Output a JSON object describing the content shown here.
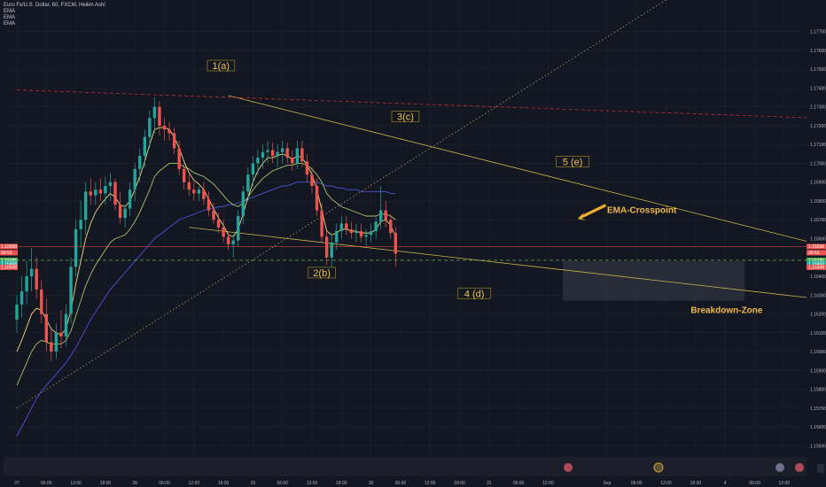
{
  "header": {
    "title": "Euro Fx/U.S. Dollar, 60, FXCM, Heikin Ashi",
    "indicators": [
      "EMA",
      "EMA",
      "EMA"
    ]
  },
  "colors": {
    "background": "#131722",
    "grid": "#1e222d",
    "bull": "#26a69a",
    "bear": "#ef5350",
    "ema_fast": "#f0d67a",
    "ema_mid": "#a5c46a",
    "ema_slow": "#4c54d8",
    "trendline": "#c9b44a",
    "dotted_trend": "#b0a060",
    "resistance": "#c0302f",
    "annotation": "#f0c34a",
    "current_price_line": "#ef5350",
    "support_dash": "#7ec85a"
  },
  "chart_data": {
    "type": "candlestick",
    "symbol": "Euro Fx/U.S. Dollar",
    "timeframe": "60",
    "y_axis": {
      "range": [
        1.1545,
        1.1783
      ],
      "ticks": [
        "1.17700",
        "1.17600",
        "1.17500",
        "1.17400",
        "1.17300",
        "1.17200",
        "1.17100",
        "1.17000",
        "1.16900",
        "1.16800",
        "1.16700",
        "1.16600",
        "1.16400",
        "1.16300",
        "1.16200",
        "1.16100",
        "1.16000",
        "1.15900",
        "1.15800",
        "1.15700",
        "1.15600",
        "1.15500"
      ],
      "tick_values": [
        1.177,
        1.176,
        1.175,
        1.174,
        1.173,
        1.172,
        1.171,
        1.17,
        1.169,
        1.168,
        1.167,
        1.166,
        1.164,
        1.163,
        1.162,
        1.161,
        1.16,
        1.159,
        1.158,
        1.157,
        1.156,
        1.155
      ],
      "price_tags": [
        {
          "label": "1.16558",
          "value": 1.16558,
          "color": "#ef5350"
        },
        {
          "label": "30:53",
          "value": 1.16525,
          "color": "#ef5350"
        },
        {
          "label": "1.16485",
          "value": 1.16485,
          "color": "#4caf50"
        },
        {
          "label": "1.16468",
          "value": 1.16468,
          "color": "#26a69a"
        },
        {
          "label": "1.16448",
          "value": 1.16448,
          "color": "#ef5350"
        }
      ]
    },
    "x_axis": {
      "tick_labels": [
        "27",
        "06:00",
        "12:00",
        "18:00",
        "28",
        "06:00",
        "12:00",
        "18:00",
        "29",
        "06:00",
        "12:00",
        "18:00",
        "30",
        "06:00",
        "12:00",
        "18:00",
        "31",
        "06:00",
        "12:00",
        "Sep",
        "06:00",
        "12:00",
        "18:00",
        "4",
        "06:00",
        "12:00"
      ],
      "tick_bars": [
        0,
        6,
        12,
        18,
        24,
        30,
        36,
        42,
        48,
        54,
        60,
        66,
        72,
        78,
        84,
        90,
        96,
        102,
        108,
        120,
        126,
        132,
        138,
        144,
        150,
        156
      ]
    },
    "candles_ohlc": [
      [
        1.1617,
        1.163,
        1.161,
        1.1625
      ],
      [
        1.1625,
        1.164,
        1.1618,
        1.1632
      ],
      [
        1.1632,
        1.1648,
        1.1625,
        1.164
      ],
      [
        1.164,
        1.1655,
        1.1632,
        1.1644
      ],
      [
        1.1644,
        1.165,
        1.1628,
        1.1633
      ],
      [
        1.1633,
        1.1638,
        1.1615,
        1.162
      ],
      [
        1.162,
        1.1628,
        1.16,
        1.1605
      ],
      [
        1.1605,
        1.1612,
        1.1595,
        1.16
      ],
      [
        1.16,
        1.1615,
        1.1596,
        1.161
      ],
      [
        1.161,
        1.1622,
        1.1602,
        1.1608
      ],
      [
        1.1608,
        1.1625,
        1.1603,
        1.162
      ],
      [
        1.162,
        1.165,
        1.1615,
        1.1645
      ],
      [
        1.1645,
        1.167,
        1.164,
        1.1665
      ],
      [
        1.1665,
        1.168,
        1.1655,
        1.167
      ],
      [
        1.167,
        1.169,
        1.1662,
        1.1685
      ],
      [
        1.1685,
        1.1692,
        1.1678,
        1.1683
      ],
      [
        1.1683,
        1.169,
        1.1678,
        1.1686
      ],
      [
        1.1686,
        1.1692,
        1.168,
        1.1684
      ],
      [
        1.1684,
        1.1693,
        1.1678,
        1.1688
      ],
      [
        1.1688,
        1.1695,
        1.168,
        1.169
      ],
      [
        1.169,
        1.1692,
        1.1675,
        1.1678
      ],
      [
        1.1678,
        1.1685,
        1.1668,
        1.1671
      ],
      [
        1.1671,
        1.1678,
        1.1666,
        1.1676
      ],
      [
        1.1676,
        1.169,
        1.1672,
        1.1686
      ],
      [
        1.1686,
        1.17,
        1.168,
        1.1697
      ],
      [
        1.1697,
        1.1708,
        1.169,
        1.1704
      ],
      [
        1.1704,
        1.1718,
        1.1698,
        1.1714
      ],
      [
        1.1714,
        1.1728,
        1.1708,
        1.1724
      ],
      [
        1.1724,
        1.1735,
        1.1716,
        1.173
      ],
      [
        1.173,
        1.1733,
        1.1715,
        1.172
      ],
      [
        1.172,
        1.1724,
        1.1712,
        1.1718
      ],
      [
        1.1718,
        1.1722,
        1.1712,
        1.1716
      ],
      [
        1.1716,
        1.1719,
        1.1705,
        1.1708
      ],
      [
        1.1708,
        1.1712,
        1.1694,
        1.1697
      ],
      [
        1.1697,
        1.17,
        1.1686,
        1.169
      ],
      [
        1.169,
        1.1694,
        1.1683,
        1.1686
      ],
      [
        1.1686,
        1.169,
        1.168,
        1.1684
      ],
      [
        1.1684,
        1.1688,
        1.168,
        1.1686
      ],
      [
        1.1686,
        1.169,
        1.1678,
        1.1681
      ],
      [
        1.1681,
        1.1685,
        1.1672,
        1.1675
      ],
      [
        1.1675,
        1.1679,
        1.1668,
        1.167
      ],
      [
        1.167,
        1.1674,
        1.1663,
        1.1666
      ],
      [
        1.1666,
        1.167,
        1.1658,
        1.1661
      ],
      [
        1.1661,
        1.1664,
        1.1654,
        1.1657
      ],
      [
        1.1657,
        1.1662,
        1.165,
        1.1659
      ],
      [
        1.1659,
        1.1675,
        1.1656,
        1.1672
      ],
      [
        1.1672,
        1.1688,
        1.1668,
        1.1685
      ],
      [
        1.1685,
        1.1698,
        1.168,
        1.1694
      ],
      [
        1.1694,
        1.1704,
        1.1688,
        1.17
      ],
      [
        1.17,
        1.1707,
        1.1694,
        1.1703
      ],
      [
        1.1703,
        1.171,
        1.1697,
        1.1706
      ],
      [
        1.1706,
        1.1712,
        1.17,
        1.1707
      ],
      [
        1.1707,
        1.1711,
        1.17,
        1.1704
      ],
      [
        1.1704,
        1.171,
        1.1698,
        1.1706
      ],
      [
        1.1706,
        1.1712,
        1.17,
        1.1708
      ],
      [
        1.1708,
        1.1711,
        1.17,
        1.1703
      ],
      [
        1.1703,
        1.1707,
        1.1696,
        1.17
      ],
      [
        1.17,
        1.1712,
        1.1697,
        1.1708
      ],
      [
        1.1708,
        1.1712,
        1.1698,
        1.1701
      ],
      [
        1.1701,
        1.1705,
        1.169,
        1.1694
      ],
      [
        1.1694,
        1.1698,
        1.1684,
        1.1688
      ],
      [
        1.1688,
        1.1692,
        1.1672,
        1.1675
      ],
      [
        1.1675,
        1.1679,
        1.1658,
        1.1661
      ],
      [
        1.1661,
        1.1664,
        1.1646,
        1.165
      ],
      [
        1.165,
        1.1662,
        1.1645,
        1.1658
      ],
      [
        1.1658,
        1.1668,
        1.1654,
        1.1664
      ],
      [
        1.1664,
        1.1672,
        1.166,
        1.1668
      ],
      [
        1.1668,
        1.1672,
        1.1662,
        1.1665
      ],
      [
        1.1665,
        1.1669,
        1.166,
        1.1663
      ],
      [
        1.1663,
        1.1668,
        1.1658,
        1.1664
      ],
      [
        1.1664,
        1.1668,
        1.1658,
        1.1661
      ],
      [
        1.1661,
        1.1665,
        1.1656,
        1.1662
      ],
      [
        1.1662,
        1.1668,
        1.1658,
        1.1664
      ],
      [
        1.1664,
        1.1672,
        1.166,
        1.1669
      ],
      [
        1.1669,
        1.1688,
        1.1665,
        1.1675
      ],
      [
        1.1675,
        1.168,
        1.1666,
        1.167
      ],
      [
        1.167,
        1.1673,
        1.166,
        1.1663
      ],
      [
        1.1663,
        1.1666,
        1.1645,
        1.1652
      ]
    ],
    "bar_spacing": 5.55,
    "ema_fast_values": [
      1.16,
      1.1606,
      1.1613,
      1.162,
      1.1623,
      1.1622,
      1.1617,
      1.1612,
      1.161,
      1.1609,
      1.1612,
      1.1622,
      1.1636,
      1.1648,
      1.166,
      1.1668,
      1.1674,
      1.1678,
      1.1681,
      1.1684,
      1.1682,
      1.1678,
      1.1677,
      1.168,
      1.1686,
      1.1693,
      1.1701,
      1.171,
      1.1718,
      1.1719,
      1.1719,
      1.1718,
      1.1714,
      1.1708,
      1.1701,
      1.1695,
      1.1691,
      1.1689,
      1.1686,
      1.1681,
      1.1676,
      1.1671,
      1.1667,
      1.1662,
      1.1661,
      1.1665,
      1.1673,
      1.1682,
      1.169,
      1.1696,
      1.17,
      1.1703,
      1.1703,
      1.1704,
      1.1705,
      1.1704,
      1.1702,
      1.1704,
      1.1703,
      1.1699,
      1.1694,
      1.1686,
      1.1675,
      1.1664,
      1.1662,
      1.1663,
      1.1665,
      1.1665,
      1.1664,
      1.1664,
      1.1663,
      1.1663,
      1.1663,
      1.1665,
      1.1669,
      1.167,
      1.1667,
      1.1661
    ],
    "ema_mid_values": [
      1.1582,
      1.1588,
      1.1594,
      1.16,
      1.1604,
      1.1606,
      1.1605,
      1.1604,
      1.1604,
      1.1604,
      1.1606,
      1.1611,
      1.1619,
      1.1627,
      1.1635,
      1.1641,
      1.1646,
      1.165,
      1.1654,
      1.1658,
      1.166,
      1.1661,
      1.1662,
      1.1665,
      1.1669,
      1.1674,
      1.168,
      1.1686,
      1.1693,
      1.1696,
      1.1698,
      1.17,
      1.17,
      1.17,
      1.1698,
      1.1697,
      1.1695,
      1.1694,
      1.1693,
      1.1691,
      1.1689,
      1.1686,
      1.1683,
      1.168,
      1.1678,
      1.1677,
      1.1679,
      1.1682,
      1.1686,
      1.1689,
      1.1692,
      1.1694,
      1.1696,
      1.1697,
      1.1698,
      1.1699,
      1.1699,
      1.17,
      1.17,
      1.1699,
      1.1697,
      1.1694,
      1.169,
      1.1684,
      1.1681,
      1.1679,
      1.1677,
      1.1676,
      1.1675,
      1.1674,
      1.1673,
      1.1672,
      1.1672,
      1.1672,
      1.1673,
      1.1673,
      1.1672,
      1.167
    ],
    "ema_slow_values": [
      1.1555,
      1.156,
      1.1565,
      1.157,
      1.1575,
      1.1579,
      1.1582,
      1.1585,
      1.1588,
      1.1591,
      1.1594,
      1.1598,
      1.1602,
      1.1607,
      1.1612,
      1.1617,
      1.1621,
      1.1625,
      1.1629,
      1.1633,
      1.1636,
      1.1639,
      1.1642,
      1.1645,
      1.1648,
      1.1651,
      1.1654,
      1.1657,
      1.166,
      1.1662,
      1.1664,
      1.1666,
      1.1668,
      1.167,
      1.1671,
      1.1672,
      1.1673,
      1.1674,
      1.1675,
      1.1676,
      1.1676,
      1.1677,
      1.1677,
      1.1678,
      1.1678,
      1.1679,
      1.168,
      1.1681,
      1.1682,
      1.1683,
      1.1684,
      1.1685,
      1.1686,
      1.1687,
      1.1688,
      1.1688,
      1.1689,
      1.169,
      1.169,
      1.169,
      1.169,
      1.169,
      1.1689,
      1.1688,
      1.1688,
      1.1687,
      1.1687,
      1.1686,
      1.1686,
      1.1686,
      1.1685,
      1.1685,
      1.1685,
      1.1685,
      1.1685,
      1.1685,
      1.1684,
      1.1684
    ],
    "annotations": [
      {
        "label": "1(a)",
        "bar": 41.5,
        "price": 1.1751,
        "boxed": true
      },
      {
        "label": "2(b)",
        "bar": 62,
        "price": 1.1641,
        "boxed": true
      },
      {
        "label": "3(c)",
        "bar": 79,
        "price": 1.1724,
        "boxed": true
      },
      {
        "label": "4 (d)",
        "bar": 93,
        "price": 1.163,
        "boxed": true
      },
      {
        "label": "5 (e)",
        "bar": 113,
        "price": 1.17,
        "boxed": true
      },
      {
        "label": "EMA-Crosspoint",
        "bar": 120,
        "price": 1.1675,
        "boxed": false
      },
      {
        "label": "Breakdown-Zone",
        "bar": 137,
        "price": 1.1622,
        "boxed": false
      }
    ],
    "trendlines": [
      {
        "name": "upper-wedge",
        "from": [
          43,
          1.1736
        ],
        "to": [
          163,
          1.1657
        ]
      },
      {
        "name": "lower-wedge",
        "from": [
          35,
          1.1666
        ],
        "to": [
          163,
          1.1628
        ]
      },
      {
        "name": "dotted-uptrend",
        "from": [
          0,
          1.157
        ],
        "to": [
          140,
          1.18
        ]
      },
      {
        "name": "red-resistance",
        "from": [
          0,
          1.1739
        ],
        "to": [
          163,
          1.1724
        ]
      }
    ],
    "breakdown_zone": {
      "bar_from": 111,
      "bar_to": 148,
      "price_from": 1.1627,
      "price_to": 1.1648
    },
    "support_level": 1.16485,
    "current_price": 1.16558
  }
}
